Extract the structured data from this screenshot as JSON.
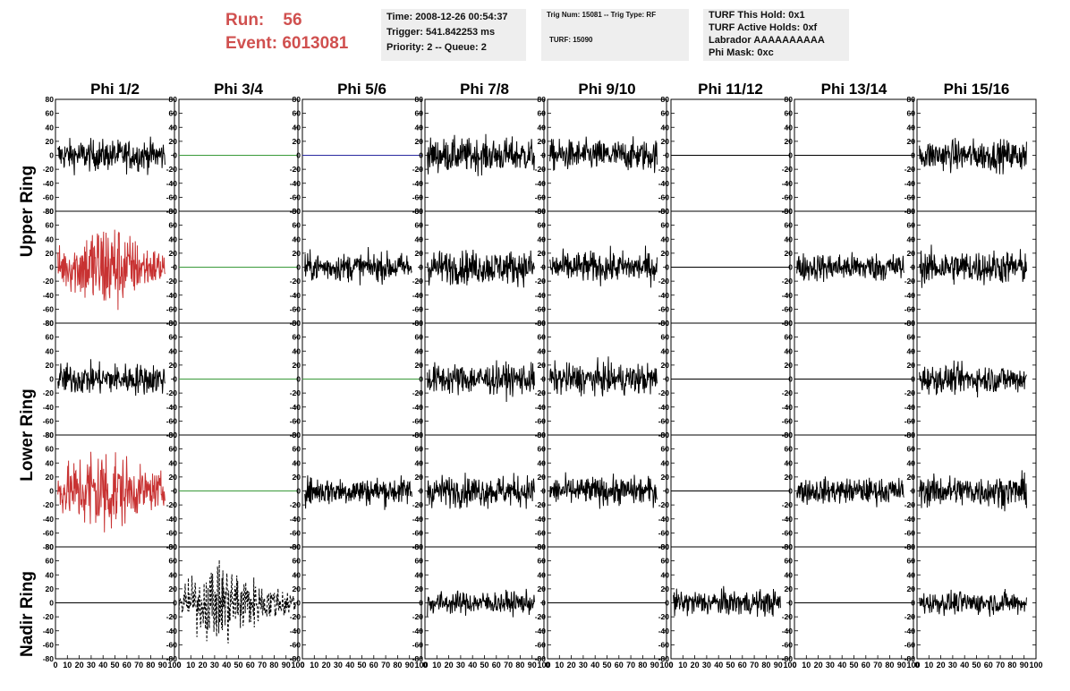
{
  "header": {
    "run_label": "Run:",
    "run_value": "56",
    "event_label": "Event:",
    "event_value": "6013081",
    "time": "Time: 2008-12-26 00:54:37",
    "trigger": "Trigger: 541.842253 ms",
    "priority": "Priority: 2 -- Queue: 2",
    "trig_num": "Trig Num: 15081 -- Trig Type: RF",
    "turf": "TURF: 15090",
    "turf_this_hold": "TURF This Hold: 0x1",
    "turf_active_holds": "TURF Active Holds: 0xf",
    "labrador": "Labrador AAAAAAAAAA",
    "phi_mask": "Phi Mask: 0xc"
  },
  "chart_data": {
    "type": "line",
    "column_titles": [
      "Phi 1/2",
      "Phi 3/4",
      "Phi 5/6",
      "Phi 7/8",
      "Phi 9/10",
      "Phi 11/12",
      "Phi 13/14",
      "Phi 15/16"
    ],
    "ring_labels": [
      "Upper Ring",
      "Lower Ring",
      "Nadir Ring"
    ],
    "xlim": [
      0,
      100
    ],
    "ylim": [
      -80,
      80
    ],
    "x_tick_labels": [
      "0",
      "10",
      "20",
      "30",
      "40",
      "50",
      "60",
      "70",
      "80",
      "90",
      "100"
    ],
    "y_tick_labels": [
      "-80",
      "-60",
      "-40",
      "-20",
      "0",
      "20",
      "40",
      "60",
      "80"
    ],
    "colors": {
      "normal": "#000000",
      "triggered": "#c83232",
      "off_green": "#3a9a3a",
      "off_blue": "#2a2aa0",
      "off_black": "#000000"
    },
    "panels": [
      [
        {
          "kind": "noise",
          "amp": 11,
          "x0": 2,
          "x1": 92,
          "color": "normal"
        },
        {
          "kind": "flat",
          "color": "off_green"
        },
        {
          "kind": "flat",
          "color": "off_blue"
        },
        {
          "kind": "noise",
          "amp": 12,
          "x0": 2,
          "x1": 92,
          "color": "normal"
        },
        {
          "kind": "noise",
          "amp": 11,
          "x0": 2,
          "x1": 92,
          "color": "normal"
        },
        {
          "kind": "flat",
          "color": "off_black"
        },
        {
          "kind": "flat",
          "color": "off_black"
        },
        {
          "kind": "noise",
          "amp": 11,
          "x0": 2,
          "x1": 92,
          "color": "normal"
        }
      ],
      [
        {
          "kind": "burst",
          "amp": 14,
          "peak": 42,
          "x0": 2,
          "x1": 92,
          "color": "triggered"
        },
        {
          "kind": "flat",
          "color": "off_green"
        },
        {
          "kind": "noise",
          "amp": 10,
          "x0": 2,
          "x1": 92,
          "color": "normal"
        },
        {
          "kind": "noise",
          "amp": 12,
          "x0": 2,
          "x1": 92,
          "color": "normal"
        },
        {
          "kind": "noise",
          "amp": 11,
          "x0": 2,
          "x1": 92,
          "color": "normal"
        },
        {
          "kind": "flat",
          "color": "off_black"
        },
        {
          "kind": "noise",
          "amp": 10,
          "x0": 2,
          "x1": 92,
          "color": "normal"
        },
        {
          "kind": "noise",
          "amp": 12,
          "x0": 2,
          "x1": 92,
          "color": "normal"
        }
      ],
      [
        {
          "kind": "noise",
          "amp": 11,
          "x0": 2,
          "x1": 92,
          "color": "normal"
        },
        {
          "kind": "flat",
          "color": "off_green"
        },
        {
          "kind": "flat",
          "color": "off_green"
        },
        {
          "kind": "noise",
          "amp": 11,
          "x0": 2,
          "x1": 92,
          "color": "normal"
        },
        {
          "kind": "noise",
          "amp": 11,
          "x0": 2,
          "x1": 92,
          "color": "normal"
        },
        {
          "kind": "flat",
          "color": "off_black"
        },
        {
          "kind": "flat",
          "color": "off_black"
        },
        {
          "kind": "noise",
          "amp": 10,
          "x0": 2,
          "x1": 92,
          "color": "normal"
        }
      ],
      [
        {
          "kind": "burst",
          "amp": 14,
          "peak": 38,
          "x0": 2,
          "x1": 92,
          "color": "triggered"
        },
        {
          "kind": "flat",
          "color": "off_green"
        },
        {
          "kind": "noise",
          "amp": 10,
          "x0": 2,
          "x1": 92,
          "color": "normal"
        },
        {
          "kind": "noise",
          "amp": 11,
          "x0": 2,
          "x1": 92,
          "color": "normal"
        },
        {
          "kind": "noise",
          "amp": 10,
          "x0": 2,
          "x1": 92,
          "color": "normal"
        },
        {
          "kind": "flat",
          "color": "off_black"
        },
        {
          "kind": "noise",
          "amp": 9,
          "x0": 2,
          "x1": 92,
          "color": "normal"
        },
        {
          "kind": "noise",
          "amp": 11,
          "x0": 2,
          "x1": 92,
          "color": "normal"
        }
      ],
      [
        {
          "kind": "flat",
          "color": "off_black"
        },
        {
          "kind": "dashburst",
          "amp": 12,
          "peak": 38,
          "x0": 0,
          "x1": 98,
          "color": "normal"
        },
        {
          "kind": "flat",
          "color": "off_black"
        },
        {
          "kind": "noise",
          "amp": 8,
          "x0": 2,
          "x1": 92,
          "color": "normal"
        },
        {
          "kind": "flat",
          "color": "off_black"
        },
        {
          "kind": "noise",
          "amp": 9,
          "x0": 2,
          "x1": 92,
          "color": "normal"
        },
        {
          "kind": "flat",
          "color": "off_black"
        },
        {
          "kind": "noise",
          "amp": 8,
          "x0": 2,
          "x1": 92,
          "color": "normal"
        }
      ]
    ]
  }
}
